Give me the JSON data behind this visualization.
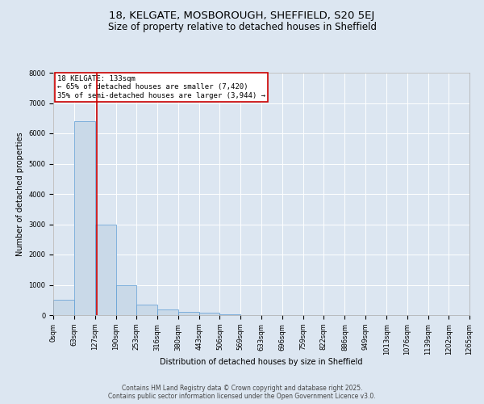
{
  "title_line1": "18, KELGATE, MOSBOROUGH, SHEFFIELD, S20 5EJ",
  "title_line2": "Size of property relative to detached houses in Sheffield",
  "xlabel": "Distribution of detached houses by size in Sheffield",
  "ylabel": "Number of detached properties",
  "bar_edges": [
    0,
    63,
    127,
    190,
    253,
    316,
    380,
    443,
    506,
    569,
    633,
    696,
    759,
    822,
    886,
    949,
    1013,
    1076,
    1139,
    1202,
    1265
  ],
  "bar_heights": [
    500,
    6400,
    3000,
    1000,
    350,
    175,
    100,
    75,
    30,
    10,
    5,
    3,
    2,
    1,
    1,
    0,
    0,
    0,
    0,
    0
  ],
  "bar_color": "#c9d9e8",
  "bar_edge_color": "#5b9bd5",
  "vline_x": 133,
  "vline_color": "#cc0000",
  "annotation_text": "18 KELGATE: 133sqm\n← 65% of detached houses are smaller (7,420)\n35% of semi-detached houses are larger (3,944) →",
  "annotation_box_color": "#cc0000",
  "annotation_text_color": "#000000",
  "background_color": "#dce6f1",
  "plot_bg_color": "#dce6f1",
  "ylim": [
    0,
    8000
  ],
  "yticks": [
    0,
    1000,
    2000,
    3000,
    4000,
    5000,
    6000,
    7000,
    8000
  ],
  "tick_labels": [
    "0sqm",
    "63sqm",
    "127sqm",
    "190sqm",
    "253sqm",
    "316sqm",
    "380sqm",
    "443sqm",
    "506sqm",
    "569sqm",
    "633sqm",
    "696sqm",
    "759sqm",
    "822sqm",
    "886sqm",
    "949sqm",
    "1013sqm",
    "1076sqm",
    "1139sqm",
    "1202sqm",
    "1265sqm"
  ],
  "footer_line1": "Contains HM Land Registry data © Crown copyright and database right 2025.",
  "footer_line2": "Contains public sector information licensed under the Open Government Licence v3.0.",
  "grid_color": "#ffffff",
  "title_fontsize": 9.5,
  "subtitle_fontsize": 8.5,
  "axis_label_fontsize": 7,
  "tick_fontsize": 6,
  "annotation_fontsize": 6.5,
  "footer_fontsize": 5.5
}
